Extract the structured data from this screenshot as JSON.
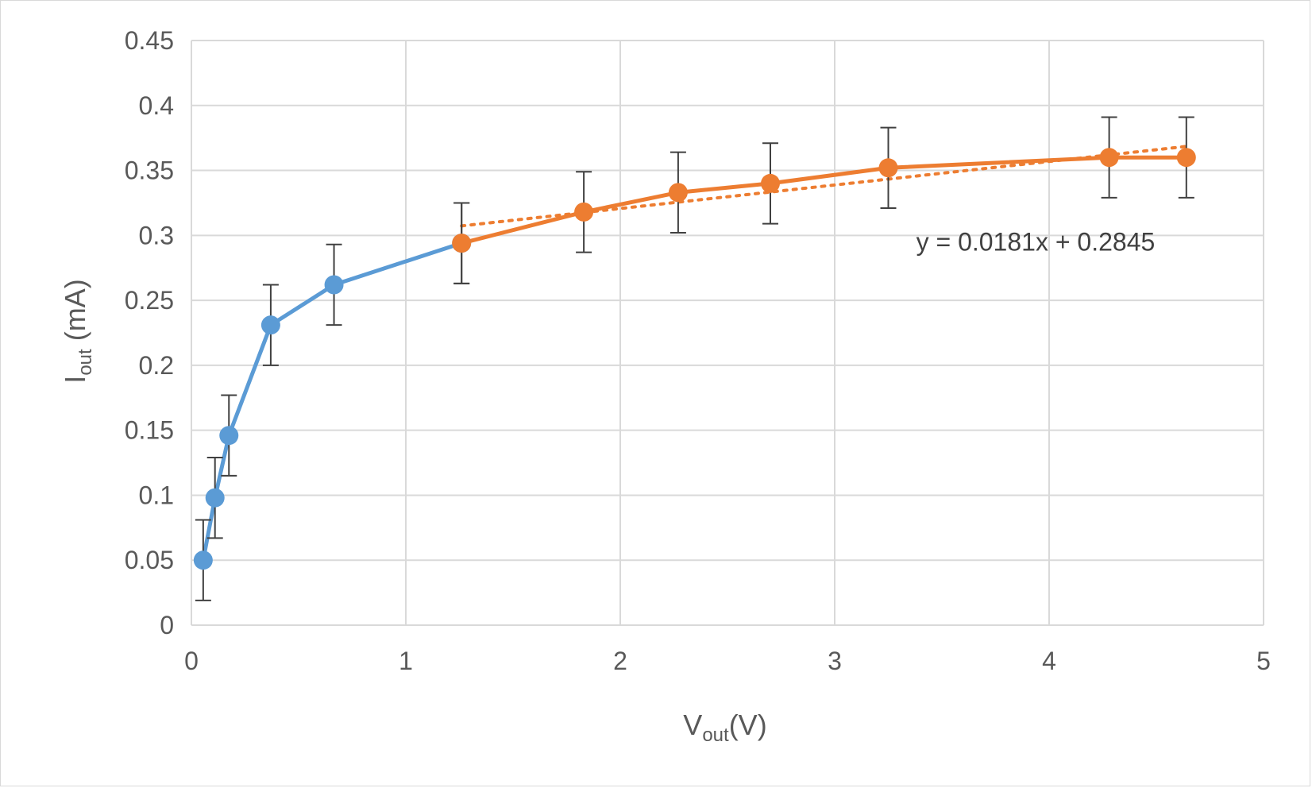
{
  "chart_data": {
    "type": "scatter",
    "xlabel": {
      "main": "V",
      "sub": "out",
      "suffix": "(V)"
    },
    "ylabel": {
      "main": "I",
      "sub": "out",
      "suffix": " (mA)"
    },
    "xlim": [
      0,
      5
    ],
    "ylim": [
      0,
      0.45
    ],
    "x_ticks": [
      0,
      1,
      2,
      3,
      4,
      5
    ],
    "y_ticks": [
      0,
      0.05,
      0.1,
      0.15,
      0.2,
      0.25,
      0.3,
      0.35,
      0.4,
      0.45
    ],
    "x_tick_labels": [
      "0",
      "1",
      "2",
      "3",
      "4",
      "5"
    ],
    "y_tick_labels": [
      "0",
      "0.05",
      "0.1",
      "0.15",
      "0.2",
      "0.25",
      "0.3",
      "0.35",
      "0.4",
      "0.45"
    ],
    "grid": true,
    "legend": "none",
    "error_bar": 0.031,
    "series": [
      {
        "color": "#5b9bd5",
        "x": [
          0.055,
          0.11,
          0.175,
          0.37,
          0.665,
          1.26
        ],
        "y": [
          0.05,
          0.098,
          0.146,
          0.231,
          0.262,
          0.294
        ]
      },
      {
        "color": "#ed7d31",
        "x": [
          1.26,
          1.83,
          2.27,
          2.7,
          3.25,
          4.28,
          4.64
        ],
        "y": [
          0.294,
          0.318,
          0.333,
          0.34,
          0.352,
          0.36,
          0.36
        ]
      }
    ],
    "trendline": {
      "color": "#ed7d31",
      "style": "dotted",
      "slope": 0.0181,
      "intercept": 0.2845,
      "x_range": [
        1.26,
        4.64
      ],
      "equation": "y = 0.0181x + 0.2845",
      "equation_anchor": {
        "x": 3.38,
        "y": 0.295
      }
    }
  }
}
